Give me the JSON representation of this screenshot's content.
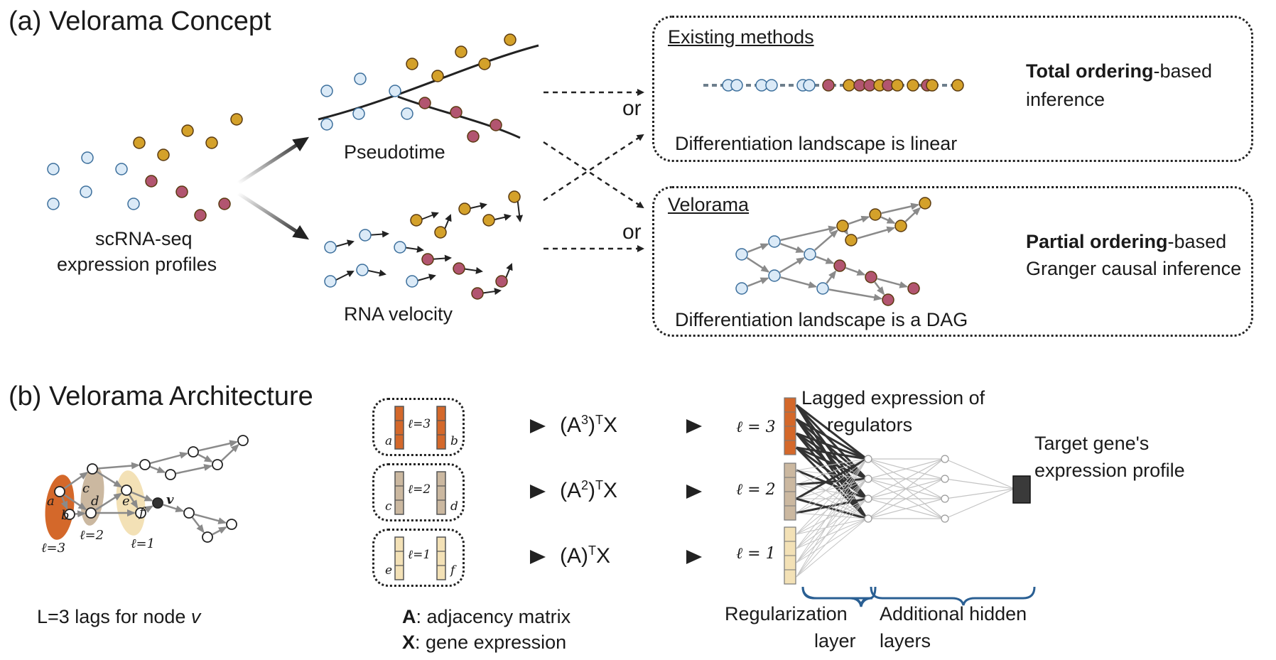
{
  "panel_a": {
    "title": "(a)  Velorama Concept",
    "scrna_label_1": "scRNA-seq",
    "scrna_label_2": "expression profiles",
    "pseudotime_label": "Pseudotime",
    "rna_velocity_label": "RNA velocity",
    "or_1": "or",
    "or_2": "or",
    "existing": {
      "heading": "Existing methods",
      "desc_bold": "Total ordering",
      "desc_rest": "-based",
      "desc_line2": "inference",
      "caption": "Differentiation landscape is linear"
    },
    "velorama": {
      "heading": "Velorama",
      "desc_bold": "Partial ordering",
      "desc_rest": "-based",
      "desc_line2": "Granger causal inference",
      "caption": "Differentiation landscape is a DAG"
    }
  },
  "panel_b": {
    "title": "(b)  Velorama Architecture",
    "graph_nodes": {
      "a": "a",
      "b": "b",
      "c": "c",
      "d": "d",
      "e": "e",
      "f": "f",
      "v": "v"
    },
    "lag_labels": [
      "ℓ=3",
      "ℓ=2",
      "ℓ=1"
    ],
    "lags_caption_prefix": "L=3 lags for node ",
    "lags_caption_var": "v",
    "rows": [
      {
        "left": "a",
        "lag": "ℓ=3",
        "right": "b",
        "formula_base": "(A",
        "formula_sup": "3",
        "formula_mid": ")",
        "formula_sup2": "T",
        "formula_end": "X",
        "nn_lag": "ℓ = 3"
      },
      {
        "left": "c",
        "lag": "ℓ=2",
        "right": "d",
        "formula_base": "(A",
        "formula_sup": "2",
        "formula_mid": ")",
        "formula_sup2": "T",
        "formula_end": "X",
        "nn_lag": "ℓ = 2"
      },
      {
        "left": "e",
        "lag": "ℓ=1",
        "right": "f",
        "formula_base": "(A)",
        "formula_sup": "",
        "formula_mid": "",
        "formula_sup2": "T",
        "formula_end": "X",
        "nn_lag": "ℓ = 1"
      }
    ],
    "legend_A_bold": "A",
    "legend_A_rest": ": adjacency matrix",
    "legend_X_bold": "X",
    "legend_X_rest": ": gene expression",
    "lagged_1": "Lagged expression of",
    "lagged_2": "regulators",
    "target_1": "Target gene's",
    "target_2": "expression profile",
    "reg_1": "Regularization",
    "reg_2": "layer",
    "hidden_1": "Additional hidden",
    "hidden_2": "layers"
  },
  "colors": {
    "blue_cell": "#dbeaf7",
    "gold_cell": "#d4a12a",
    "maroon_cell": "#b25570",
    "lag3": "#d4682a",
    "lag2": "#cbb8a0",
    "lag1": "#f3e1b6",
    "bracket": "#2a5f93"
  }
}
